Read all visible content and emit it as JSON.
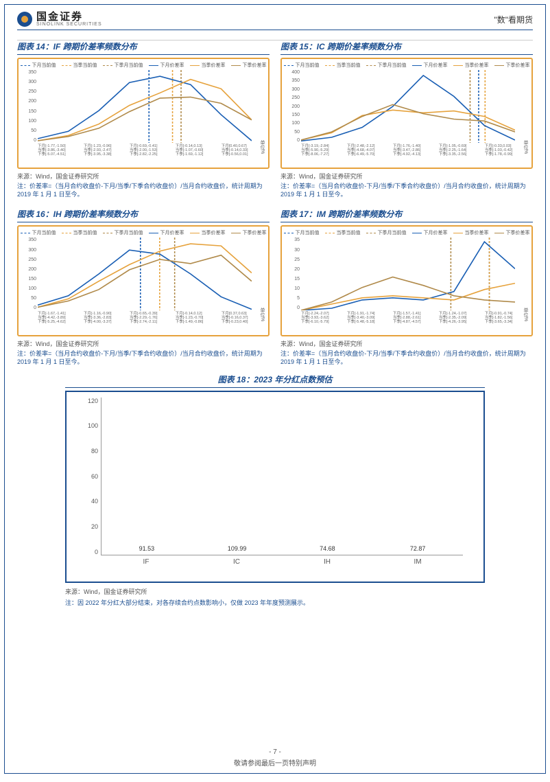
{
  "header": {
    "logo_cn": "国金证券",
    "logo_en": "SINOLINK SECURITIES",
    "right": "\"数\"看期货"
  },
  "source_text": "来源：Wind，国金证券研究所",
  "common_note": "注：价差率=（当月合约收盘价-下月/当季/下季合约收盘价）/当月合约收盘价，统计周期为 2019 年 1 月 1 日至今。",
  "legend": {
    "l1": "下月当前值",
    "l2": "当季当前值",
    "l3": "下季月当前值",
    "l4": "下月价差率",
    "l5": "当季价差率",
    "l6": "下季价差率"
  },
  "colors": {
    "blue": "#1a5fb4",
    "orange": "#e6a23c",
    "brown": "#b08a4a",
    "border_orange": "#e6a23c",
    "border_blue": "#1a4d8f",
    "bar_fill": "#1a4d8f",
    "text_blue": "#1a4d8f"
  },
  "unit_label": "单位%",
  "charts": [
    {
      "id": "c14",
      "title": "图表 14：IF 跨期价差率频数分布",
      "ymax": 350,
      "yticks": [
        "350",
        "300",
        "250",
        "200",
        "150",
        "100",
        "50",
        "0"
      ],
      "series_blue": [
        20,
        55,
        155,
        290,
        320,
        280,
        135,
        10
      ],
      "series_orange": [
        10,
        35,
        90,
        180,
        240,
        305,
        260,
        110
      ],
      "series_brown": [
        10,
        30,
        70,
        150,
        215,
        220,
        190,
        110
      ],
      "vlines": {
        "blue": 0.52,
        "orange": 0.63,
        "brown": 0.67
      },
      "xlabels": [
        [
          "下月[-1.77,-1.50]",
          "当季[-3.86,-3.40]",
          "下季[-5.07,-4.51]"
        ],
        [
          "下月[-1.23,-0.96]",
          "当季[-2.93,-2.47]",
          "下季[-3.95,-3.38]"
        ],
        [
          "下月[-0.69,-0.41]",
          "当季[-2.00,-1.53]",
          "下季[-2.82,-2.25]"
        ],
        [
          "下月[-0.14,0.13]",
          "当季[-1.07,-0.60]",
          "下季[-1.69,-1.12]"
        ],
        [
          "下月[0.40,0.67]",
          "当季[-0.14,0.33]",
          "下季[-0.56,0.01]"
        ]
      ]
    },
    {
      "id": "c15",
      "title": "图表 15：IC 跨期价差率频数分布",
      "ymax": 400,
      "yticks": [
        "400",
        "350",
        "300",
        "250",
        "200",
        "150",
        "100",
        "50",
        "0"
      ],
      "series_blue": [
        10,
        30,
        85,
        200,
        370,
        255,
        95,
        15
      ],
      "series_orange": [
        15,
        55,
        150,
        180,
        165,
        175,
        145,
        70
      ],
      "series_brown": [
        15,
        60,
        145,
        210,
        160,
        130,
        120,
        60
      ],
      "vlines": {
        "blue": 0.83,
        "orange": 0.86,
        "brown": 0.79
      },
      "xlabels": [
        [
          "下月[-3.19,-2.84]",
          "当季[-5.90,-5.29]",
          "下季[-8.06,-7.27]"
        ],
        [
          "下月[-2.48,-2.12]",
          "当季[-4.68,-4.07]",
          "下季[-6.49,-5.70]"
        ],
        [
          "下月[-1.76,-1.40]",
          "当季[-3.47,-2.86]",
          "下季[-4.92,-4.13]"
        ],
        [
          "下月[-1.05,-0.69]",
          "当季[-2.25,-1.64]",
          "下季[-3.35,-2.56]"
        ],
        [
          "下月[-0.33,0.03]",
          "当季[-1.03,-0.42]",
          "下季[-1.78,-0.99]"
        ]
      ]
    },
    {
      "id": "c16",
      "title": "图表 16：IH 跨期价差率频数分布",
      "ymax": 350,
      "yticks": [
        "350",
        "300",
        "250",
        "200",
        "150",
        "100",
        "50",
        "0"
      ],
      "series_blue": [
        25,
        70,
        175,
        290,
        270,
        175,
        65,
        5
      ],
      "series_orange": [
        15,
        55,
        140,
        220,
        285,
        320,
        310,
        180
      ],
      "series_brown": [
        15,
        45,
        100,
        195,
        245,
        225,
        265,
        140
      ],
      "vlines": {
        "blue": 0.48,
        "orange": 0.57,
        "brown": 0.64
      },
      "xlabels": [
        [
          "下月[-1.67,-1.41]",
          "当季[-4.42,-3.89]",
          "下季[-5.25,-4.62]"
        ],
        [
          "下月[-1.16,-0.90]",
          "当季[-3.36,-2.83]",
          "下季[-4.00,-3.37]"
        ],
        [
          "下月[-0.65,-0.39]",
          "当季[-2.29,-1.76]",
          "下季[-2.74,-2.11]"
        ],
        [
          "下月[-0.14,0.12]",
          "当季[-1.23,-0.70]",
          "下季[-1.49,-0.86]"
        ],
        [
          "下月[0.37,0.63]",
          "当季[-0.16,0.37]",
          "下季[-0.23,0.40]"
        ]
      ]
    },
    {
      "id": "c17",
      "title": "图表 17：IM 跨期价差率频数分布",
      "ymax": 35,
      "yticks": [
        "35",
        "30",
        "25",
        "20",
        "15",
        "10",
        "5",
        "0"
      ],
      "series_blue": [
        0,
        1,
        5,
        6,
        5,
        9,
        33,
        20
      ],
      "series_orange": [
        0,
        3,
        6,
        7,
        6,
        5,
        10,
        13
      ],
      "series_brown": [
        0,
        4,
        11,
        16,
        12,
        7,
        5,
        4
      ],
      "vlines": {
        "blue": 0.88,
        "orange": 0.88,
        "brown": 0.7
      },
      "xlabels": [
        [
          "下月[-2.24,-2.07]",
          "当季[-3.93,-3.62]",
          "下季[-6.10,-5.79]"
        ],
        [
          "下月[-1.91,-1.74]",
          "当季[-3.40,-3.09]",
          "下季[-5.48,-5.18]"
        ],
        [
          "下月[-1.57,-1.41]",
          "当季[-2.88,-2.61]",
          "下季[-4.87,-4.57]"
        ],
        [
          "下月[-1.24,-1.07]",
          "当季[-2.35,-2.09]",
          "下季[-4.26,-3.95]"
        ],
        [
          "下月[-0.91,-0.74]",
          "当季[-1.82,-1.56]",
          "下季[-3.65,-3.34]"
        ]
      ]
    }
  ],
  "chart18": {
    "title": "图表 18：2023 年分红点数预估",
    "ymax": 120,
    "yticks": [
      "120",
      "100",
      "80",
      "60",
      "40",
      "20",
      "0"
    ],
    "categories": [
      "IF",
      "IC",
      "IH",
      "IM"
    ],
    "values": [
      91.53,
      109.99,
      74.68,
      72.87
    ],
    "note": "注：因 2022 年分红大部分结束，对各存续合约点数影响小，仅做 2023 年年度预测展示。"
  },
  "footer": {
    "page": "- 7 -",
    "disclaimer": "敬请参阅最后一页特别声明"
  }
}
